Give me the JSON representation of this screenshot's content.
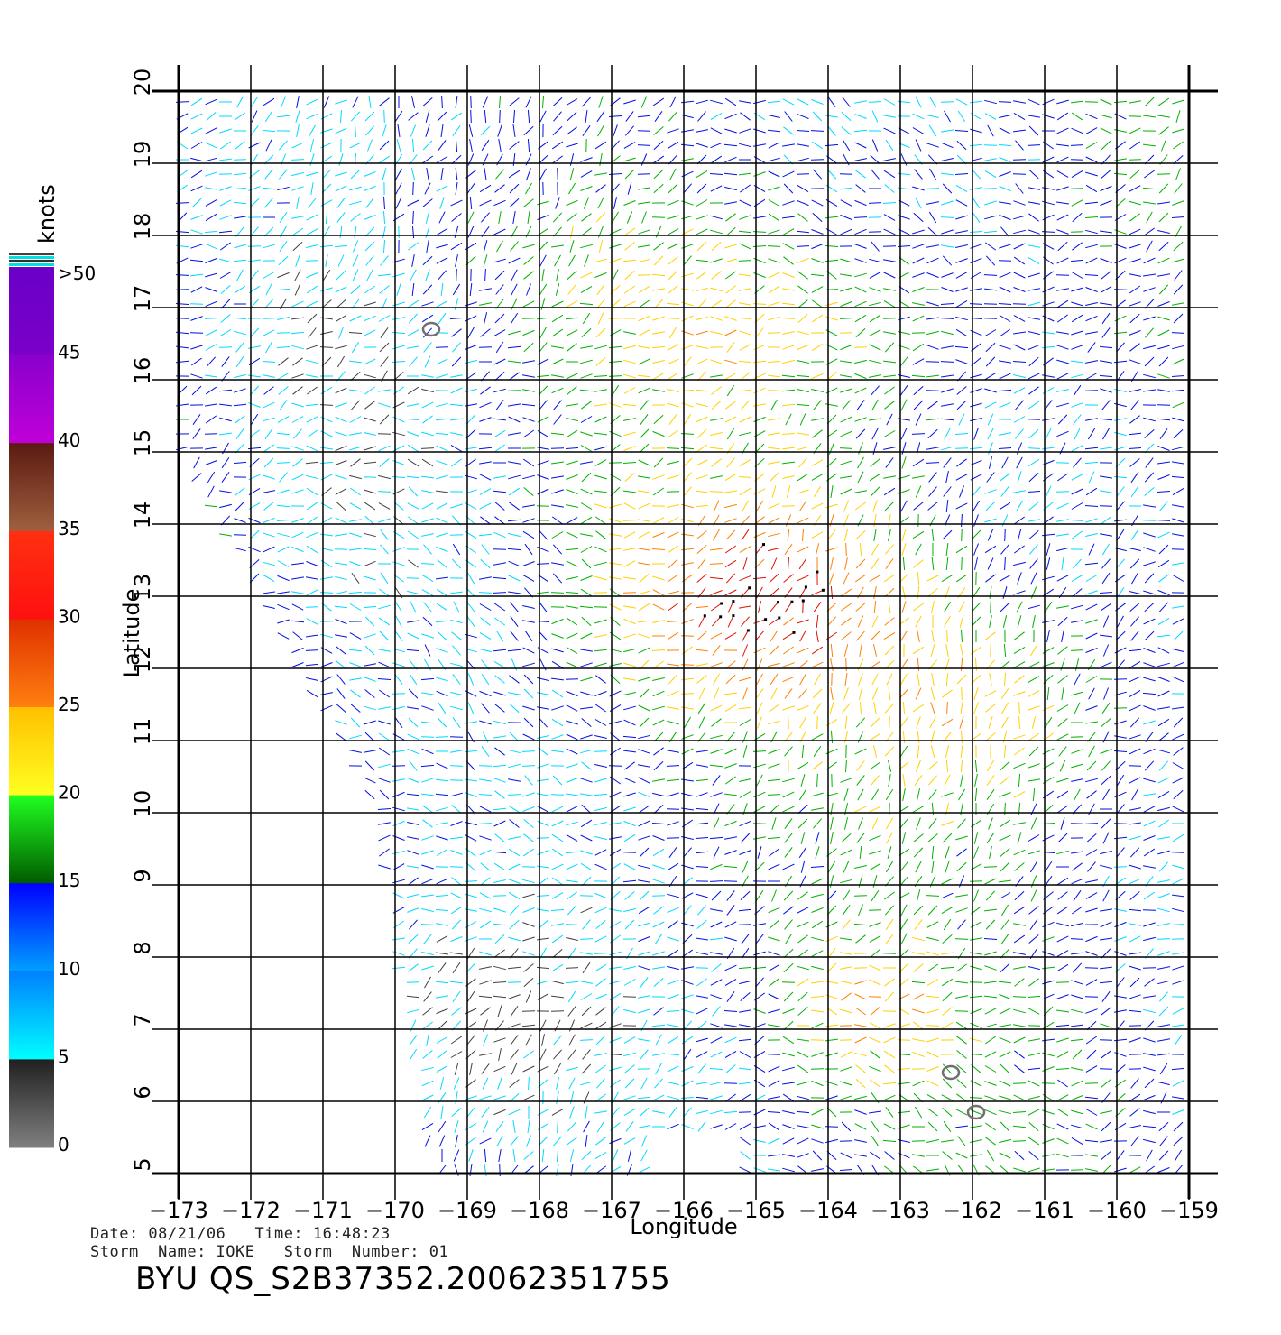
{
  "legend": {
    "title": "knots",
    "bands": [
      {
        "label": ">50",
        "top": "#6a00c8",
        "bottom": "#7a00c8"
      },
      {
        "label": "45",
        "top": "#8a00cc",
        "bottom": "#c000d8"
      },
      {
        "label": "40",
        "top": "#5a1a10",
        "bottom": "#a06040"
      },
      {
        "label": "35",
        "top": "#ff3010",
        "bottom": "#ff1010"
      },
      {
        "label": "30",
        "top": "#e03000",
        "bottom": "#ff8010"
      },
      {
        "label": "25",
        "top": "#ffc000",
        "bottom": "#ffff20"
      },
      {
        "label": "20",
        "top": "#20ff20",
        "bottom": "#005a00"
      },
      {
        "label": "15",
        "top": "#0000ff",
        "bottom": "#00a0ff"
      },
      {
        "label": "10",
        "top": "#0080ff",
        "bottom": "#00ffff"
      },
      {
        "label": "5",
        "top": "#202020",
        "bottom": "#808080"
      }
    ],
    "zero_label": "0"
  },
  "axes": {
    "xlabel": "Longitude",
    "ylabel": "Latitude",
    "lon_ticks": [
      "-173",
      "-172",
      "-171",
      "-170",
      "-169",
      "-168",
      "-167",
      "-166",
      "-165",
      "-164",
      "-163",
      "-162",
      "-161",
      "-160",
      "-159"
    ],
    "lat_ticks": [
      "5",
      "6",
      "7",
      "8",
      "9",
      "10",
      "11",
      "12",
      "13",
      "14",
      "15",
      "16",
      "17",
      "18",
      "19",
      "20"
    ],
    "lon_range": [
      -173,
      -159
    ],
    "lat_range": [
      5,
      20
    ]
  },
  "footer": {
    "date_line": "Date: 08/21/06   Time: 16:48:23",
    "storm_line": "Storm  Name: IOKE   Storm  Number: 01",
    "title": "BYU  QS_S2B37352.20062351755"
  },
  "colors": {
    "gray": "#404040",
    "cyan": "#00d8ff",
    "blue": "#0010e0",
    "green": "#00b000",
    "yellow": "#ffd000",
    "orange": "#ff8000",
    "red": "#e01000",
    "purple": "#9000c0",
    "land": "#707070"
  },
  "islands": [
    {
      "lon": -169.5,
      "lat": 16.7
    },
    {
      "lon": -162.3,
      "lat": 6.4
    },
    {
      "lon": -161.95,
      "lat": 5.85
    }
  ]
}
